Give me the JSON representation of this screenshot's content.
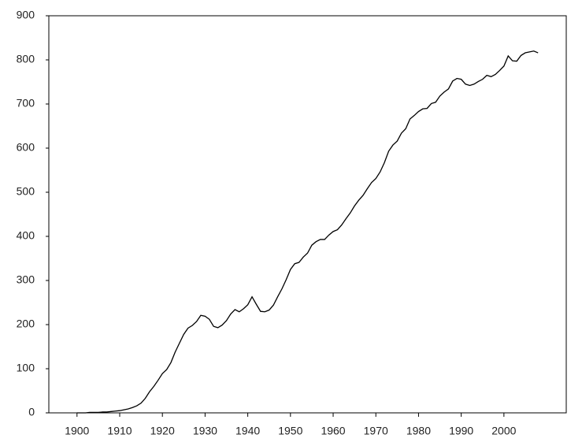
{
  "chart_data": {
    "type": "line",
    "x": [
      1900,
      1901,
      1902,
      1903,
      1904,
      1905,
      1906,
      1907,
      1908,
      1909,
      1910,
      1911,
      1912,
      1913,
      1914,
      1915,
      1916,
      1917,
      1918,
      1919,
      1920,
      1921,
      1922,
      1923,
      1924,
      1925,
      1926,
      1927,
      1928,
      1929,
      1930,
      1931,
      1932,
      1933,
      1934,
      1935,
      1936,
      1937,
      1938,
      1939,
      1940,
      1941,
      1942,
      1943,
      1944,
      1945,
      1946,
      1947,
      1948,
      1949,
      1950,
      1951,
      1952,
      1953,
      1954,
      1955,
      1956,
      1957,
      1958,
      1959,
      1960,
      1961,
      1962,
      1963,
      1964,
      1965,
      1966,
      1967,
      1968,
      1969,
      1970,
      1971,
      1972,
      1973,
      1974,
      1975,
      1976,
      1977,
      1978,
      1979,
      1980,
      1981,
      1982,
      1983,
      1984,
      1985,
      1986,
      1987,
      1988,
      1989,
      1990,
      1991,
      1992,
      1993,
      1994,
      1995,
      1996,
      1997,
      1998,
      1999,
      2000,
      2001,
      2002,
      2003,
      2004,
      2005,
      2006,
      2007,
      2008
    ],
    "values": [
      0,
      0,
      0,
      1,
      1,
      1,
      2,
      2,
      3,
      4,
      5,
      7,
      9,
      12,
      16,
      22,
      33,
      48,
      60,
      74,
      89,
      98,
      114,
      138,
      158,
      178,
      192,
      198,
      207,
      221,
      219,
      212,
      196,
      193,
      199,
      209,
      224,
      234,
      229,
      236,
      245,
      263,
      246,
      230,
      229,
      233,
      244,
      263,
      281,
      302,
      325,
      338,
      341,
      353,
      362,
      380,
      388,
      393,
      393,
      403,
      411,
      415,
      426,
      440,
      453,
      469,
      482,
      493,
      508,
      522,
      531,
      546,
      567,
      593,
      607,
      616,
      634,
      644,
      666,
      674,
      683,
      689,
      690,
      701,
      704,
      718,
      727,
      734,
      752,
      758,
      756,
      745,
      742,
      745,
      751,
      756,
      765,
      762,
      767,
      776,
      786,
      809,
      798,
      797,
      810,
      816,
      818,
      820,
      816
    ],
    "color": "#000000",
    "xlim": [
      1893.4,
      2014.6
    ],
    "xticks": [
      1900,
      1910,
      1920,
      1930,
      1940,
      1950,
      1960,
      1970,
      1980,
      1990,
      2000
    ],
    "ylim": [
      0,
      900
    ],
    "yticks": [
      0,
      100,
      200,
      300,
      400,
      500,
      600,
      700,
      800,
      900
    ]
  }
}
